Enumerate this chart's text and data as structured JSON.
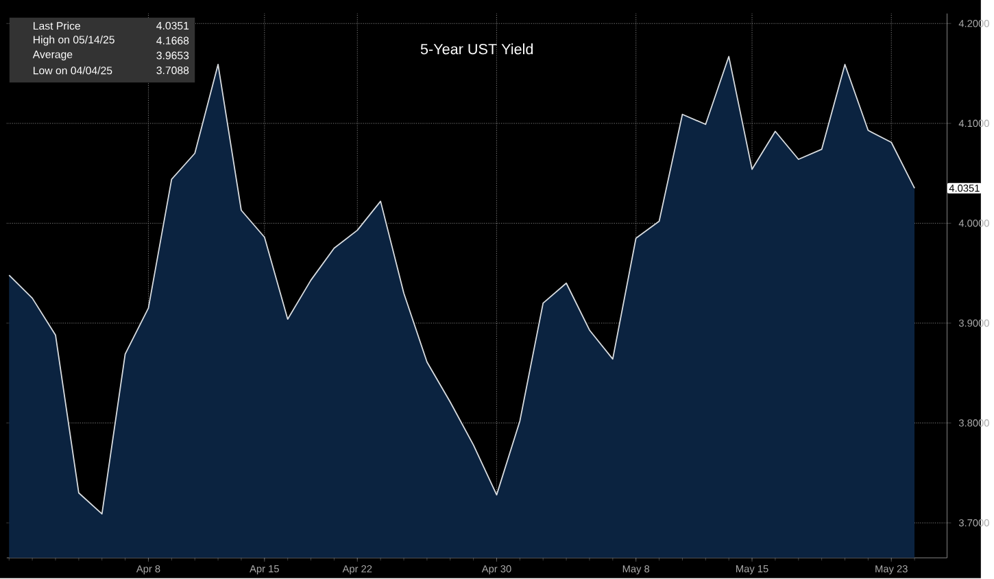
{
  "chart_data": {
    "type": "area",
    "title": "5-Year UST Yield",
    "categories": [
      null,
      null,
      null,
      null,
      null,
      null,
      "Apr 8",
      null,
      null,
      null,
      null,
      "Apr 15",
      null,
      null,
      null,
      "Apr 22",
      null,
      null,
      null,
      null,
      null,
      "Apr 30",
      null,
      null,
      null,
      null,
      null,
      "May 8",
      null,
      null,
      null,
      null,
      "May 15",
      null,
      null,
      null,
      null,
      null,
      "May 23",
      null
    ],
    "series": [
      {
        "color": "#0b2340",
        "values": [
          3.948,
          3.925,
          3.888,
          3.73,
          3.709,
          3.869,
          3.915,
          4.044,
          4.07,
          4.159,
          4.013,
          3.986,
          3.904,
          3.943,
          3.975,
          3.993,
          4.022,
          3.93,
          3.861,
          3.821,
          3.778,
          3.728,
          3.802,
          3.92,
          3.94,
          3.893,
          3.864,
          3.985,
          4.002,
          4.109,
          4.099,
          4.167,
          4.054,
          4.092,
          4.064,
          4.074,
          4.159,
          4.093,
          4.081,
          4.035
        ]
      }
    ],
    "ylim": [
      3.665,
      4.21
    ],
    "yticks": [
      {
        "value": 3.7,
        "label": "3.7000"
      },
      {
        "value": 3.8,
        "label": "3.8000"
      },
      {
        "value": 3.9,
        "label": "3.9000"
      },
      {
        "value": 4.0,
        "label": "4.0000"
      },
      {
        "value": 4.1,
        "label": "4.1000"
      },
      {
        "value": 4.2,
        "label": "4.2000"
      }
    ],
    "grid": true,
    "annotations": [
      "Last Price",
      "4.0351",
      "High on 05/14/25",
      "4.1668",
      "Average",
      "3.9653",
      "Low on 04/04/25",
      "3.7088",
      {
        "text": "4.0351",
        "y": 4.0351
      }
    ]
  }
}
